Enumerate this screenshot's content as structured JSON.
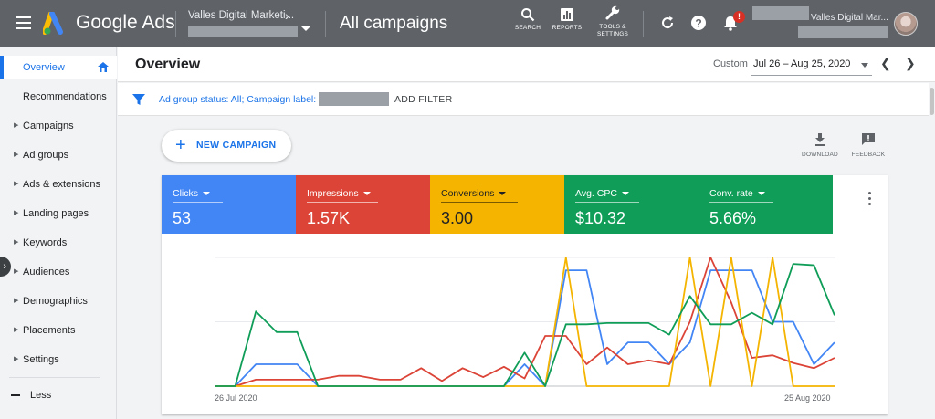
{
  "header": {
    "brand": "Google Ads",
    "account_name": "Valles Digital Marketi...",
    "page_title": "All campaigns",
    "tools": [
      {
        "label": "SEARCH",
        "icon": "search-icon"
      },
      {
        "label": "REPORTS",
        "icon": "reports-icon"
      },
      {
        "label": "TOOLS &",
        "label2": "SETTINGS",
        "icon": "wrench-icon"
      }
    ],
    "notification_badge": "!",
    "customer_name": "Valles Digital Mar..."
  },
  "sidebar": {
    "items": [
      {
        "label": "Overview",
        "active": true
      },
      {
        "label": "Recommendations"
      },
      {
        "label": "Campaigns"
      },
      {
        "label": "Ad groups"
      },
      {
        "label": "Ads & extensions"
      },
      {
        "label": "Landing pages"
      },
      {
        "label": "Keywords"
      },
      {
        "label": "Audiences"
      },
      {
        "label": "Demographics"
      },
      {
        "label": "Placements"
      },
      {
        "label": "Settings"
      }
    ],
    "less_label": "Less"
  },
  "overview": {
    "title": "Overview",
    "date_label": "Custom",
    "date_range": "Jul 26 – Aug 25, 2020"
  },
  "filter": {
    "text": "Ad group status: All; Campaign label:",
    "add_filter": "ADD FILTER"
  },
  "actions": {
    "new_campaign": "NEW CAMPAIGN",
    "download": "DOWNLOAD",
    "feedback": "FEEDBACK"
  },
  "metrics": [
    {
      "name": "Clicks",
      "value": "53",
      "color": "#4285f4"
    },
    {
      "name": "Impressions",
      "value": "1.57K",
      "color": "#db4437"
    },
    {
      "name": "Conversions",
      "value": "3.00",
      "color": "#f4b400"
    },
    {
      "name": "Avg. CPC",
      "value": "$10.32",
      "color": "#0f9d58"
    },
    {
      "name": "Conv. rate",
      "value": "5.66%",
      "color": "#0f9d58"
    }
  ],
  "chart_data": {
    "type": "line",
    "x_start_label": "26 Jul 2020",
    "x_end_label": "25 Aug 2020",
    "x": [
      "Jul 26",
      "Jul 27",
      "Jul 28",
      "Jul 29",
      "Jul 30",
      "Jul 31",
      "Aug 1",
      "Aug 2",
      "Aug 3",
      "Aug 4",
      "Aug 5",
      "Aug 6",
      "Aug 7",
      "Aug 8",
      "Aug 9",
      "Aug 10",
      "Aug 11",
      "Aug 12",
      "Aug 13",
      "Aug 14",
      "Aug 15",
      "Aug 16",
      "Aug 17",
      "Aug 18",
      "Aug 19",
      "Aug 20",
      "Aug 21",
      "Aug 22",
      "Aug 23",
      "Aug 24",
      "Aug 25"
    ],
    "ylim": [
      0,
      1
    ],
    "grid": true,
    "series": [
      {
        "color": "#4285f4",
        "values": [
          0,
          0,
          0.17,
          0.17,
          0.17,
          0,
          0,
          0,
          0,
          0,
          0,
          0,
          0,
          0,
          0,
          0.17,
          0,
          0.9,
          0.9,
          0.17,
          0.34,
          0.34,
          0.17,
          0.34,
          0.9,
          0.9,
          0.9,
          0.5,
          0.5,
          0.17,
          0.34
        ]
      },
      {
        "color": "#db4437",
        "values": [
          0,
          0,
          0.05,
          0.05,
          0.05,
          0.05,
          0.08,
          0.08,
          0.05,
          0.05,
          0.14,
          0.04,
          0.14,
          0.07,
          0.15,
          0.06,
          0.39,
          0.39,
          0.17,
          0.3,
          0.17,
          0.2,
          0.17,
          0.5,
          1.0,
          0.65,
          0.22,
          0.24,
          0.18,
          0.14,
          0.22
        ]
      },
      {
        "color": "#f4b400",
        "values": [
          0,
          0,
          0,
          0,
          0,
          0,
          0,
          0,
          0,
          0,
          0,
          0,
          0,
          0,
          0,
          0,
          0,
          1.0,
          0,
          0,
          0,
          0,
          0,
          1.0,
          0,
          1.0,
          0,
          1.0,
          0,
          0,
          0
        ]
      },
      {
        "color": "#0f9d58",
        "values": [
          0,
          0,
          0.58,
          0.42,
          0.42,
          0,
          0,
          0,
          0,
          0,
          0,
          0,
          0,
          0,
          0,
          0.26,
          0,
          0.48,
          0.48,
          0.49,
          0.49,
          0.49,
          0.4,
          0.7,
          0.48,
          0.48,
          0.57,
          0.48,
          0.95,
          0.94,
          0.55
        ]
      }
    ]
  }
}
